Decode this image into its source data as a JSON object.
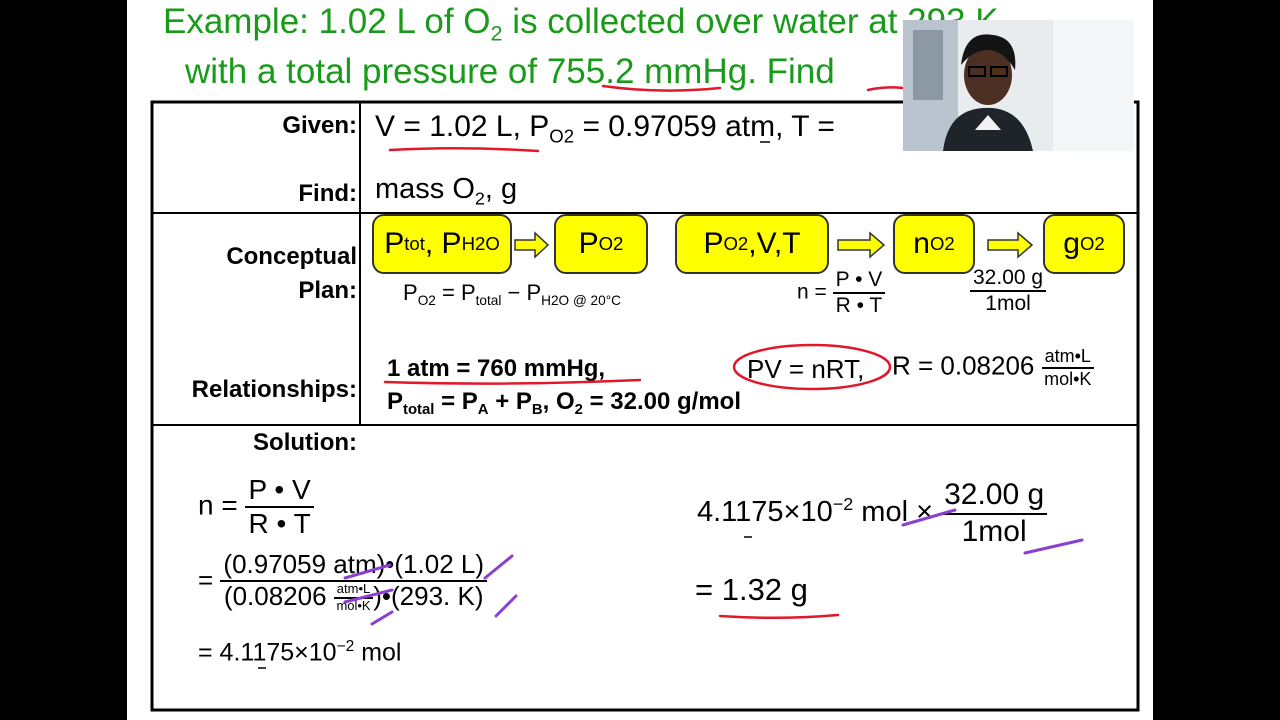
{
  "title": {
    "line1": [
      "Example: 1.02 L of O",
      {
        "sub": "2"
      },
      " is collected over water at 293 K"
    ],
    "line2": "with a total pressure of 755.2 mmHg. Find"
  },
  "given": {
    "label": "Given:",
    "value": [
      "V = 1.02 L, P",
      {
        "sub": "O2"
      },
      " = 0.97059 atm, T = "
    ]
  },
  "find": {
    "label": "Find:",
    "value": [
      "mass O",
      {
        "sub": "2"
      },
      ", g"
    ]
  },
  "conceptual_plan": {
    "label": "Conceptual Plan:",
    "steps": [
      [
        "P",
        {
          "sub": "tot"
        },
        ", P",
        {
          "sub": "H2O"
        }
      ],
      [
        "P",
        {
          "sub": "O2"
        }
      ],
      [
        "P",
        {
          "sub": "O2"
        },
        ",V,T"
      ],
      [
        "n",
        {
          "sub": "O2"
        }
      ],
      [
        "g",
        {
          "sub": "O2"
        }
      ]
    ],
    "pressure_relation": [
      "P",
      {
        "sub": "O2"
      },
      " = P",
      {
        "sub": "total"
      },
      " − P",
      {
        "sub": "H2O @ 20°C"
      }
    ],
    "moles_relation": {
      "left": "n =",
      "numerator": "P • V",
      "denominator": "R • T"
    },
    "mass_relation": {
      "numerator": "32.00 g",
      "denominator": "1mol"
    }
  },
  "relationships": {
    "label": "Relationships:",
    "line1": "1 atm = 760 mmHg,",
    "line2": [
      "P",
      {
        "sub": "total"
      },
      " = P",
      {
        "sub": "A"
      },
      " + P",
      {
        "sub": "B"
      },
      ",  O",
      {
        "sub": "2"
      },
      " = 32.00 g/mol"
    ],
    "gas_law": "PV = nRT,",
    "constant": {
      "text": "R = 0.08206",
      "numerator": "atm•L",
      "denominator": "mol•K"
    }
  },
  "solution": {
    "label": "Solution:",
    "step1": {
      "left": "n =",
      "numerator": "P • V",
      "denominator": "R • T"
    },
    "step2": {
      "left": "=",
      "numerator": "(0.97059 atm)•(1.02 L)",
      "denominator_start": "(0.08206 ",
      "unit_numerator": "atm•L",
      "unit_denominator": "mol•K",
      "denominator_end": ")•(293. K)"
    },
    "step3": [
      "= 4.1175×10",
      {
        "sup": "−2"
      },
      " mol"
    ],
    "mass_start": [
      "4.1175×10",
      {
        "sup": "−2"
      },
      " mol ×"
    ],
    "mass_numerator": "32.00 g",
    "mass_denominator": "1mol",
    "mass_result": "= 1.32 g"
  }
}
